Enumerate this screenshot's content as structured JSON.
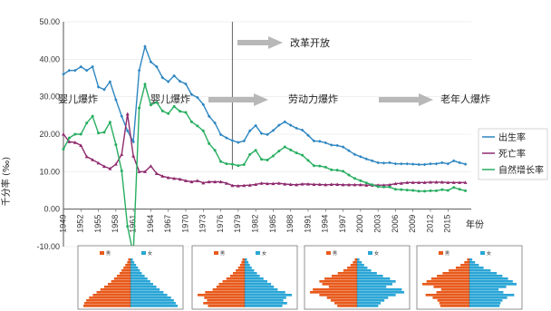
{
  "chart_data": {
    "type": "line",
    "ylabel": "千分率 (‰)",
    "xlabel": "年份",
    "ylim": [
      -10,
      50
    ],
    "y_ticks": [
      "50.00",
      "40.00",
      "30.00",
      "20.00",
      "10.00",
      "0.00",
      "-10.00"
    ],
    "x_ticks": [
      "1949",
      "1952",
      "1955",
      "1958",
      "1961",
      "1964",
      "1967",
      "1970",
      "1973",
      "1976",
      "1979",
      "1982",
      "1985",
      "1988",
      "1991",
      "1994",
      "1997",
      "2000",
      "2003",
      "2006",
      "2009",
      "2012",
      "2015"
    ],
    "x": [
      1949,
      1950,
      1951,
      1952,
      1953,
      1954,
      1955,
      1956,
      1957,
      1958,
      1959,
      1960,
      1961,
      1962,
      1963,
      1964,
      1965,
      1966,
      1967,
      1968,
      1969,
      1970,
      1971,
      1972,
      1973,
      1974,
      1975,
      1976,
      1977,
      1978,
      1979,
      1980,
      1981,
      1982,
      1983,
      1984,
      1985,
      1986,
      1987,
      1988,
      1989,
      1990,
      1991,
      1992,
      1993,
      1994,
      1995,
      1996,
      1997,
      1998,
      1999,
      2000,
      2001,
      2002,
      2003,
      2004,
      2005,
      2006,
      2007,
      2008,
      2009,
      2010,
      2011,
      2012,
      2013,
      2014,
      2015,
      2016,
      2017,
      2018
    ],
    "series": [
      {
        "name": "出生率",
        "color": "#2e86c1",
        "marker": "diamond",
        "values": [
          36.0,
          37.0,
          37.0,
          38.0,
          37.0,
          38.0,
          32.6,
          31.9,
          34.0,
          29.2,
          24.8,
          20.9,
          18.0,
          37.0,
          43.4,
          39.3,
          38.0,
          35.1,
          34.0,
          35.6,
          34.1,
          33.4,
          30.6,
          29.8,
          27.9,
          24.8,
          23.0,
          19.9,
          19.0,
          18.3,
          17.8,
          18.2,
          20.9,
          22.3,
          20.2,
          19.9,
          21.0,
          22.4,
          23.3,
          22.4,
          21.6,
          21.1,
          19.7,
          18.2,
          18.1,
          17.7,
          17.1,
          17.0,
          16.6,
          15.6,
          14.6,
          14.0,
          13.4,
          12.9,
          12.4,
          12.3,
          12.4,
          12.1,
          12.1,
          12.1,
          12.0,
          11.9,
          11.9,
          12.1,
          12.1,
          12.4,
          12.1,
          12.9,
          12.4,
          12.0
        ]
      },
      {
        "name": "死亡率",
        "color": "#8e2a6e",
        "marker": "triangle",
        "values": [
          20.0,
          18.0,
          17.8,
          17.0,
          14.0,
          13.2,
          12.3,
          11.4,
          10.8,
          12.0,
          14.6,
          25.4,
          14.2,
          10.0,
          10.0,
          11.5,
          9.5,
          8.8,
          8.4,
          8.2,
          8.0,
          7.6,
          7.3,
          7.6,
          7.0,
          7.3,
          7.3,
          7.3,
          6.9,
          6.3,
          6.2,
          6.3,
          6.4,
          6.6,
          6.9,
          6.8,
          6.8,
          6.9,
          6.7,
          6.6,
          6.5,
          6.7,
          6.7,
          6.6,
          6.6,
          6.5,
          6.6,
          6.6,
          6.5,
          6.5,
          6.5,
          6.5,
          6.4,
          6.4,
          6.4,
          6.4,
          6.5,
          6.8,
          6.9,
          7.1,
          7.1,
          7.1,
          7.1,
          7.2,
          7.2,
          7.2,
          7.1,
          7.1,
          7.1,
          7.1
        ]
      },
      {
        "name": "自然增长率",
        "color": "#27ae60",
        "marker": "circle",
        "values": [
          16.0,
          19.0,
          20.0,
          20.0,
          23.0,
          24.8,
          20.3,
          20.5,
          23.2,
          17.2,
          10.2,
          -4.6,
          -12.0,
          27.0,
          33.3,
          27.8,
          28.5,
          26.2,
          25.5,
          27.4,
          26.1,
          25.8,
          23.3,
          22.2,
          20.9,
          17.5,
          15.7,
          12.7,
          12.1,
          12.0,
          11.6,
          11.9,
          14.6,
          15.7,
          13.3,
          13.1,
          14.2,
          15.5,
          16.6,
          15.8,
          15.0,
          14.4,
          13.0,
          11.6,
          11.5,
          11.2,
          10.5,
          10.4,
          10.1,
          9.1,
          8.2,
          7.6,
          7.0,
          6.5,
          6.0,
          5.9,
          5.9,
          5.3,
          5.2,
          5.1,
          5.0,
          4.8,
          4.8,
          4.9,
          4.9,
          5.2,
          5.0,
          5.8,
          5.3,
          4.9
        ]
      }
    ],
    "annotations": [
      "改革开放",
      "婴儿爆炸",
      "婴儿爆炸",
      "劳动力爆炸",
      "老年人爆炸"
    ],
    "legend_position": "right"
  },
  "pyramids": [
    {
      "legend_left": "男",
      "legend_right": "女",
      "female": [
        0.05,
        0.08,
        0.12,
        0.16,
        0.2,
        0.24,
        0.3,
        0.36,
        0.42,
        0.48,
        0.55,
        0.62,
        0.7,
        0.78,
        0.86,
        0.92,
        0.96,
        1.0
      ],
      "male": [
        0.05,
        0.07,
        0.11,
        0.15,
        0.19,
        0.23,
        0.29,
        0.35,
        0.41,
        0.48,
        0.56,
        0.64,
        0.72,
        0.8,
        0.88,
        0.94,
        0.98,
        1.0
      ]
    },
    {
      "legend_left": "男",
      "legend_right": "女",
      "female": [
        0.05,
        0.08,
        0.11,
        0.15,
        0.2,
        0.26,
        0.32,
        0.4,
        0.48,
        0.56,
        0.62,
        0.7,
        0.86,
        1.0,
        0.88,
        0.82,
        0.9,
        0.8
      ],
      "male": [
        0.05,
        0.07,
        0.1,
        0.14,
        0.19,
        0.25,
        0.31,
        0.39,
        0.47,
        0.55,
        0.6,
        0.68,
        0.84,
        1.0,
        0.86,
        0.8,
        0.88,
        0.78
      ]
    },
    {
      "legend_left": "男",
      "legend_right": "女",
      "female": [
        0.05,
        0.1,
        0.15,
        0.22,
        0.3,
        0.42,
        0.55,
        0.7,
        0.82,
        0.75,
        0.62,
        0.95,
        1.0,
        0.82,
        0.66,
        0.58,
        0.5,
        0.45
      ],
      "male": [
        0.05,
        0.09,
        0.14,
        0.21,
        0.29,
        0.41,
        0.54,
        0.69,
        0.8,
        0.74,
        0.6,
        0.94,
        1.0,
        0.8,
        0.64,
        0.56,
        0.48,
        0.42
      ]
    },
    {
      "legend_left": "男",
      "legend_right": "女",
      "female": [
        0.06,
        0.12,
        0.2,
        0.3,
        0.45,
        0.58,
        0.7,
        0.82,
        0.92,
        1.0,
        0.78,
        0.62,
        0.72,
        0.95,
        0.8,
        0.7,
        0.66,
        0.64
      ],
      "male": [
        0.05,
        0.11,
        0.19,
        0.29,
        0.44,
        0.57,
        0.69,
        0.81,
        0.91,
        1.0,
        0.76,
        0.6,
        0.7,
        0.93,
        0.78,
        0.68,
        0.64,
        0.62
      ]
    }
  ]
}
